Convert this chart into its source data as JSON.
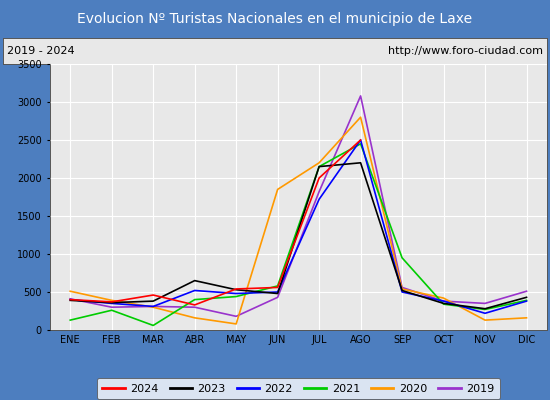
{
  "title": "Evolucion Nº Turistas Nacionales en el municipio de Laxe",
  "subtitle_left": "2019 - 2024",
  "subtitle_right": "http://www.foro-ciudad.com",
  "months": [
    "ENE",
    "FEB",
    "MAR",
    "ABR",
    "MAY",
    "JUN",
    "JUL",
    "AGO",
    "SEP",
    "OCT",
    "NOV",
    "DIC"
  ],
  "ylim": [
    0,
    3500
  ],
  "yticks": [
    0,
    500,
    1000,
    1500,
    2000,
    2500,
    3000,
    3500
  ],
  "series": {
    "2024": {
      "color": "#ff0000",
      "linewidth": 1.2,
      "data": [
        400,
        370,
        460,
        330,
        540,
        560,
        2000,
        2500,
        null,
        null,
        null,
        null
      ]
    },
    "2023": {
      "color": "#000000",
      "linewidth": 1.2,
      "data": [
        390,
        360,
        380,
        650,
        530,
        480,
        2150,
        2200,
        520,
        350,
        280,
        430
      ]
    },
    "2022": {
      "color": "#0000ff",
      "linewidth": 1.2,
      "data": [
        400,
        350,
        310,
        520,
        480,
        500,
        1720,
        2500,
        500,
        380,
        220,
        380
      ]
    },
    "2021": {
      "color": "#00cc00",
      "linewidth": 1.2,
      "data": [
        130,
        260,
        60,
        400,
        440,
        580,
        2150,
        2450,
        950,
        340,
        270,
        390
      ]
    },
    "2020": {
      "color": "#ff9900",
      "linewidth": 1.2,
      "data": [
        510,
        390,
        300,
        160,
        80,
        1850,
        2200,
        2800,
        540,
        420,
        130,
        160
      ]
    },
    "2019": {
      "color": "#9933cc",
      "linewidth": 1.2,
      "data": [
        410,
        300,
        310,
        300,
        180,
        430,
        1820,
        3080,
        560,
        380,
        350,
        510
      ]
    }
  },
  "title_color": "#ffffff",
  "title_bg_color": "#4d7ebf",
  "subtitle_bg_color": "#e8e8e8",
  "plot_bg_color": "#e8e8e8",
  "outer_bg_color": "#4d7ebf",
  "grid_color": "#ffffff",
  "legend_order": [
    "2024",
    "2023",
    "2022",
    "2021",
    "2020",
    "2019"
  ]
}
